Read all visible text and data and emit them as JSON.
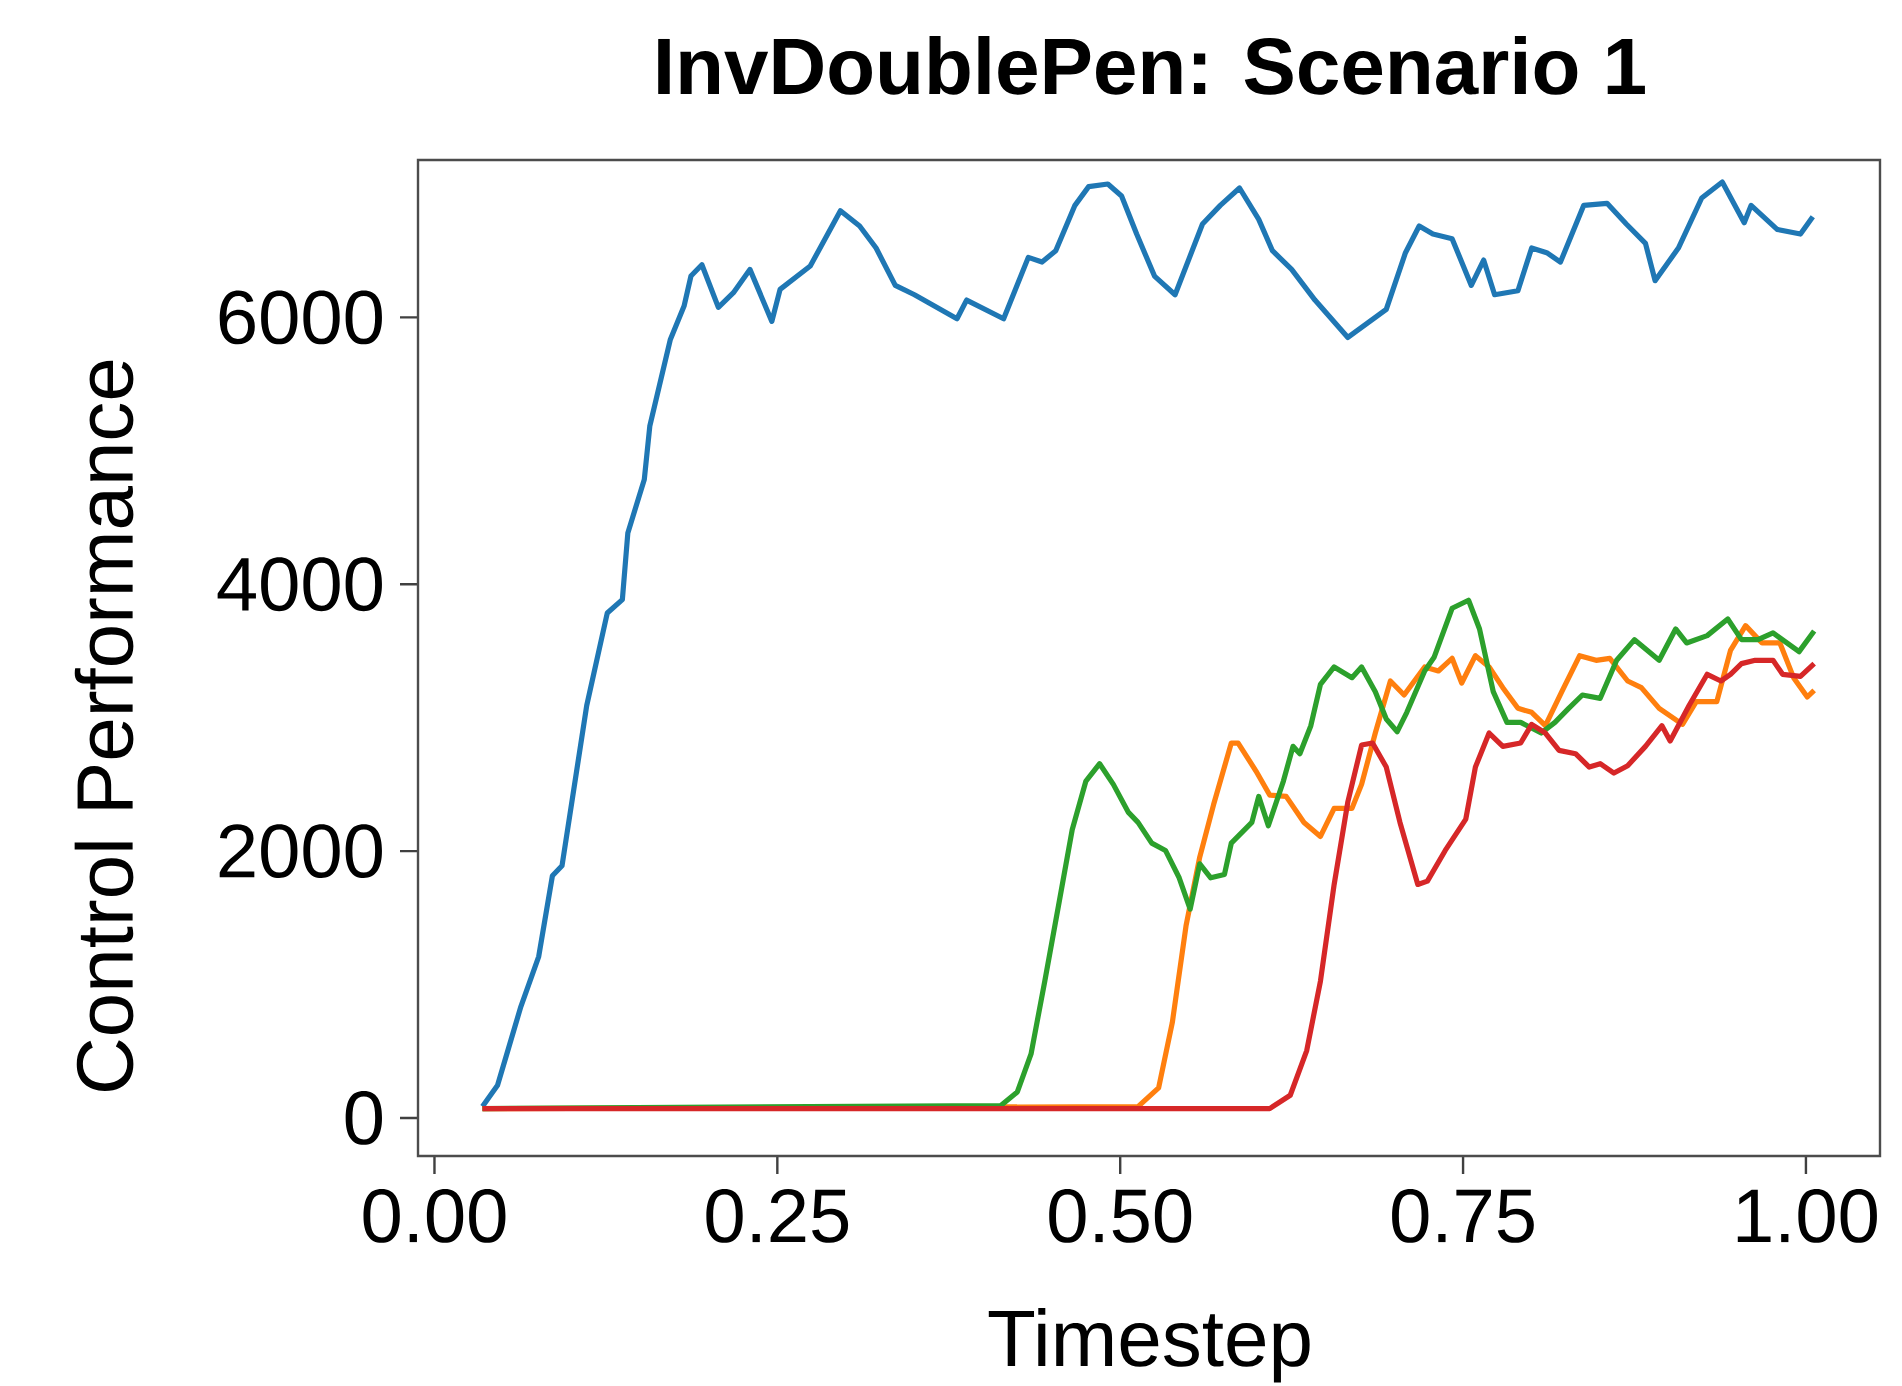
{
  "chart_data": {
    "type": "line",
    "title": "InvDoublePen: Scenario 1",
    "xlabel": "Timestep",
    "ylabel": "Control Performance",
    "xlim": [
      -0.012,
      1.054
    ],
    "ylim": [
      -285,
      7180
    ],
    "xticks": [
      {
        "value": 0,
        "label": "0.00"
      },
      {
        "value": 0.25,
        "label": "0.25"
      },
      {
        "value": 0.5,
        "label": "0.50"
      },
      {
        "value": 0.75,
        "label": "0.75"
      },
      {
        "value": 1.0,
        "label": "1.00"
      }
    ],
    "yticks": [
      0,
      2000,
      4000,
      6000
    ],
    "series": [
      {
        "color": "#1f77b4",
        "x": [
          0.035,
          0.046,
          0.063,
          0.076,
          0.086,
          0.093,
          0.111,
          0.126,
          0.137,
          0.141,
          0.153,
          0.157,
          0.172,
          0.182,
          0.187,
          0.195,
          0.207,
          0.218,
          0.23,
          0.246,
          0.252,
          0.274,
          0.296,
          0.31,
          0.322,
          0.336,
          0.35,
          0.381,
          0.388,
          0.415,
          0.433,
          0.443,
          0.453,
          0.467,
          0.477,
          0.491,
          0.501,
          0.512,
          0.525,
          0.54,
          0.56,
          0.573,
          0.587,
          0.601,
          0.611,
          0.625,
          0.642,
          0.666,
          0.68,
          0.694,
          0.708,
          0.718,
          0.728,
          0.742,
          0.756,
          0.765,
          0.773,
          0.79,
          0.8,
          0.811,
          0.821,
          0.838,
          0.855,
          0.869,
          0.883,
          0.89,
          0.907,
          0.924,
          0.939,
          0.955,
          0.96,
          0.979,
          0.996,
          1.005
        ],
        "values": [
          85,
          245,
          835,
          1210,
          1815,
          1890,
          3090,
          3785,
          3885,
          4385,
          4785,
          5185,
          5835,
          6085,
          6310,
          6395,
          6075,
          6185,
          6360,
          5970,
          6210,
          6385,
          6800,
          6685,
          6520,
          6240,
          6170,
          5990,
          6130,
          5990,
          6450,
          6415,
          6500,
          6840,
          6980,
          7000,
          6910,
          6625,
          6310,
          6170,
          6700,
          6840,
          6970,
          6735,
          6500,
          6360,
          6130,
          5850,
          5955,
          6060,
          6485,
          6685,
          6625,
          6590,
          6240,
          6430,
          6170,
          6200,
          6520,
          6485,
          6415,
          6840,
          6855,
          6700,
          6555,
          6275,
          6520,
          6895,
          7015,
          6710,
          6840,
          6660,
          6625,
          6755
        ]
      },
      {
        "color": "#ff7f0e",
        "x": [
          0.035,
          0.513,
          0.528,
          0.538,
          0.548,
          0.558,
          0.568,
          0.581,
          0.586,
          0.599,
          0.609,
          0.621,
          0.634,
          0.646,
          0.656,
          0.669,
          0.676,
          0.686,
          0.697,
          0.707,
          0.722,
          0.732,
          0.742,
          0.749,
          0.759,
          0.769,
          0.779,
          0.79,
          0.8,
          0.81,
          0.822,
          0.835,
          0.847,
          0.857,
          0.87,
          0.88,
          0.893,
          0.91,
          0.92,
          0.935,
          0.945,
          0.956,
          0.968,
          0.981,
          0.991,
          1.001,
          1.006
        ],
        "values": [
          70,
          85,
          225,
          715,
          1440,
          1955,
          2345,
          2810,
          2810,
          2600,
          2420,
          2410,
          2215,
          2110,
          2320,
          2320,
          2500,
          2885,
          3275,
          3170,
          3380,
          3350,
          3445,
          3260,
          3465,
          3380,
          3225,
          3070,
          3040,
          2940,
          3195,
          3465,
          3430,
          3445,
          3275,
          3225,
          3070,
          2950,
          3120,
          3120,
          3505,
          3690,
          3560,
          3560,
          3300,
          3155,
          3205
        ]
      },
      {
        "color": "#2ca02c",
        "x": [
          0.035,
          0.413,
          0.425,
          0.435,
          0.445,
          0.455,
          0.465,
          0.475,
          0.485,
          0.495,
          0.506,
          0.513,
          0.523,
          0.533,
          0.543,
          0.551,
          0.558,
          0.566,
          0.576,
          0.581,
          0.596,
          0.601,
          0.608,
          0.619,
          0.626,
          0.631,
          0.639,
          0.646,
          0.656,
          0.669,
          0.676,
          0.686,
          0.694,
          0.702,
          0.709,
          0.722,
          0.729,
          0.742,
          0.754,
          0.762,
          0.772,
          0.782,
          0.792,
          0.807,
          0.817,
          0.827,
          0.837,
          0.85,
          0.862,
          0.875,
          0.893,
          0.905,
          0.913,
          0.928,
          0.943,
          0.953,
          0.965,
          0.976,
          0.995,
          1.006
        ],
        "values": [
          70,
          93,
          195,
          480,
          1025,
          1590,
          2160,
          2525,
          2655,
          2500,
          2290,
          2215,
          2060,
          2005,
          1800,
          1565,
          1905,
          1800,
          1825,
          2060,
          2215,
          2410,
          2190,
          2525,
          2785,
          2730,
          2940,
          3250,
          3380,
          3300,
          3380,
          3195,
          2990,
          2895,
          3040,
          3350,
          3455,
          3820,
          3880,
          3665,
          3195,
          2965,
          2965,
          2885,
          2965,
          3070,
          3170,
          3145,
          3430,
          3585,
          3430,
          3665,
          3560,
          3615,
          3740,
          3585,
          3585,
          3635,
          3495,
          3650
        ]
      },
      {
        "color": "#d62728",
        "x": [
          0.035,
          0.609,
          0.624,
          0.636,
          0.646,
          0.656,
          0.666,
          0.676,
          0.684,
          0.694,
          0.704,
          0.717,
          0.724,
          0.737,
          0.752,
          0.759,
          0.769,
          0.779,
          0.792,
          0.8,
          0.81,
          0.82,
          0.832,
          0.842,
          0.85,
          0.86,
          0.87,
          0.883,
          0.895,
          0.901,
          0.915,
          0.928,
          0.938,
          0.945,
          0.953,
          0.963,
          0.976,
          0.983,
          0.996,
          1.006
        ],
        "values": [
          70,
          70,
          170,
          505,
          1025,
          1750,
          2370,
          2795,
          2810,
          2630,
          2215,
          1750,
          1775,
          2005,
          2240,
          2630,
          2885,
          2785,
          2810,
          2950,
          2885,
          2755,
          2730,
          2630,
          2655,
          2585,
          2640,
          2785,
          2940,
          2825,
          3095,
          3325,
          3275,
          3325,
          3405,
          3430,
          3430,
          3325,
          3310,
          3405
        ]
      }
    ]
  }
}
